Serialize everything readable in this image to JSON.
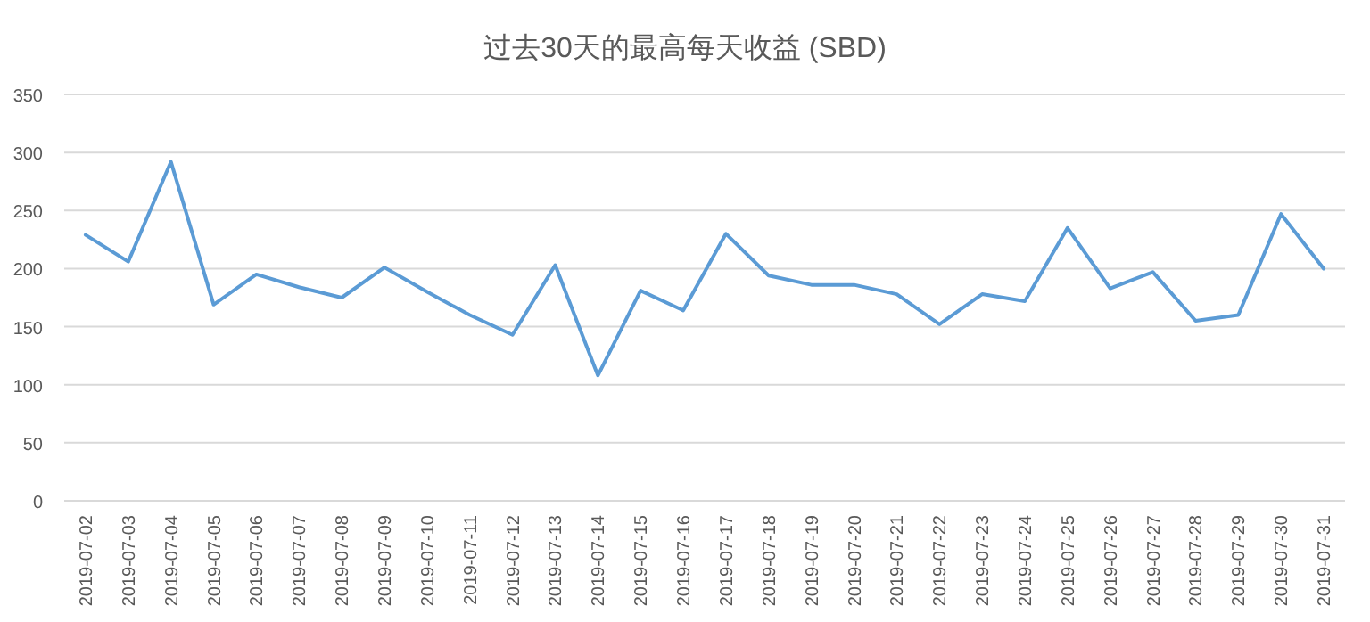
{
  "chart_data": {
    "type": "line",
    "title": "过去30天的最高每天收益 (SBD)",
    "categories": [
      "2019-07-02",
      "2019-07-03",
      "2019-07-04",
      "2019-07-05",
      "2019-07-06",
      "2019-07-07",
      "2019-07-08",
      "2019-07-09",
      "2019-07-10",
      "2019-07-11",
      "2019-07-12",
      "2019-07-13",
      "2019-07-14",
      "2019-07-15",
      "2019-07-16",
      "2019-07-17",
      "2019-07-18",
      "2019-07-19",
      "2019-07-20",
      "2019-07-21",
      "2019-07-22",
      "2019-07-23",
      "2019-07-24",
      "2019-07-25",
      "2019-07-26",
      "2019-07-27",
      "2019-07-28",
      "2019-07-29",
      "2019-07-30",
      "2019-07-31"
    ],
    "series": [
      {
        "color": "#5b9bd5",
        "values": [
          229,
          206,
          292,
          169,
          195,
          184,
          175,
          201,
          180,
          160,
          143,
          203,
          108,
          181,
          164,
          230,
          194,
          186,
          186,
          178,
          152,
          178,
          172,
          235,
          183,
          197,
          155,
          160,
          247,
          200
        ]
      }
    ],
    "ylim": [
      0,
      350
    ],
    "yticks": [
      0,
      50,
      100,
      150,
      200,
      250,
      300,
      350
    ],
    "grid": "y",
    "marker": "none",
    "line_style": "solid"
  }
}
